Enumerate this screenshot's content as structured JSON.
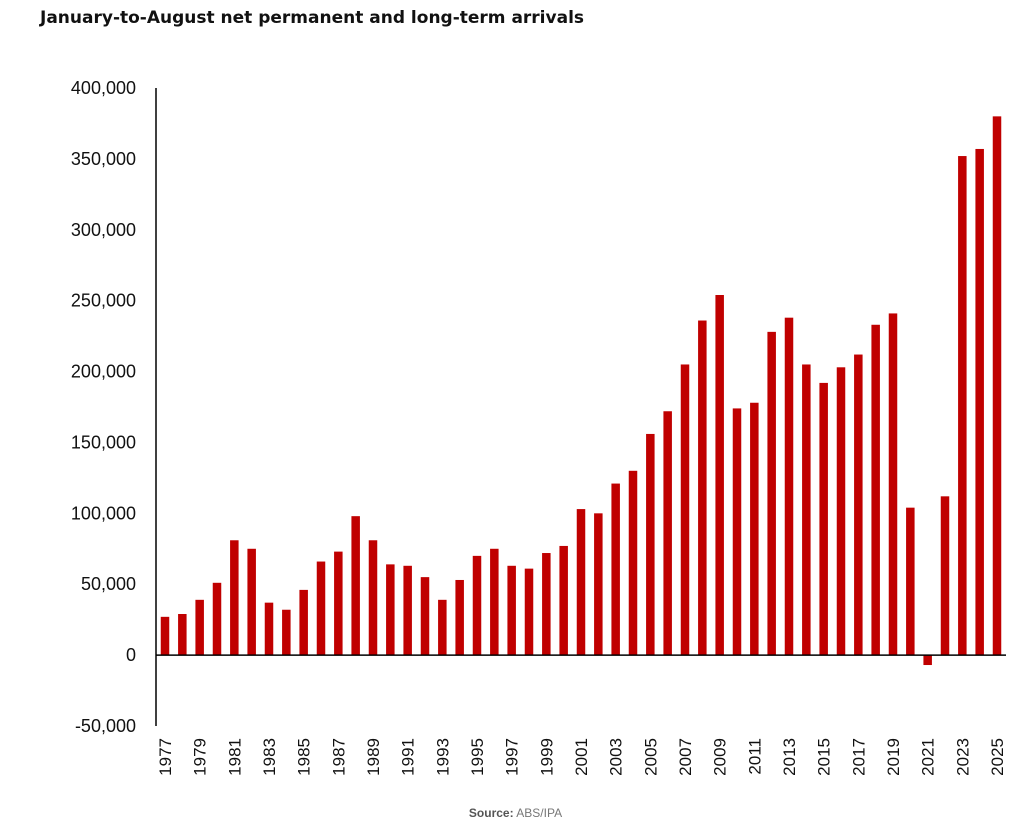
{
  "title": "January-to-August net permanent and long-term arrivals",
  "source_prefix": "Source:",
  "source_text": "ABS/IPA",
  "colors": {
    "bar": "#c00000",
    "axis": "#000000"
  },
  "chart_data": {
    "type": "bar",
    "title": "January-to-August net permanent and long-term arrivals",
    "ylim": [
      -50000,
      400000
    ],
    "yticks": [
      400000,
      350000,
      300000,
      250000,
      200000,
      150000,
      100000,
      50000,
      0,
      -50000
    ],
    "ytick_labels": [
      "400,000",
      "350,000",
      "300,000",
      "250,000",
      "200,000",
      "150,000",
      "100,000",
      "50,000",
      "0",
      "-50,000"
    ],
    "categories": [
      "1977",
      "1978",
      "1979",
      "1980",
      "1981",
      "1982",
      "1983",
      "1984",
      "1985",
      "1986",
      "1987",
      "1988",
      "1989",
      "1990",
      "1991",
      "1992",
      "1993",
      "1994",
      "1995",
      "1996",
      "1997",
      "1998",
      "1999",
      "2000",
      "2001",
      "2002",
      "2003",
      "2004",
      "2005",
      "2006",
      "2007",
      "2008",
      "2009",
      "2010",
      "2011",
      "2012",
      "2013",
      "2014",
      "2015",
      "2016",
      "2017",
      "2018",
      "2019",
      "2020",
      "2021",
      "2022",
      "2023",
      "2024",
      "2025"
    ],
    "xtick_labels": [
      "1977",
      "1979",
      "1981",
      "1983",
      "1985",
      "1987",
      "1989",
      "1991",
      "1993",
      "1995",
      "1997",
      "1999",
      "2001",
      "2003",
      "2005",
      "2007",
      "2009",
      "2011",
      "2013",
      "2015",
      "2017",
      "2019",
      "2021",
      "2023",
      "2025"
    ],
    "values": [
      27000,
      29000,
      39000,
      51000,
      81000,
      75000,
      37000,
      32000,
      46000,
      66000,
      73000,
      98000,
      81000,
      64000,
      63000,
      55000,
      39000,
      53000,
      70000,
      75000,
      63000,
      61000,
      72000,
      77000,
      103000,
      100000,
      121000,
      130000,
      156000,
      172000,
      205000,
      236000,
      254000,
      174000,
      178000,
      228000,
      238000,
      205000,
      192000,
      203000,
      212000,
      233000,
      241000,
      104000,
      -7000,
      112000,
      352000,
      357000,
      380000
    ],
    "grid": false,
    "legend": "none"
  }
}
